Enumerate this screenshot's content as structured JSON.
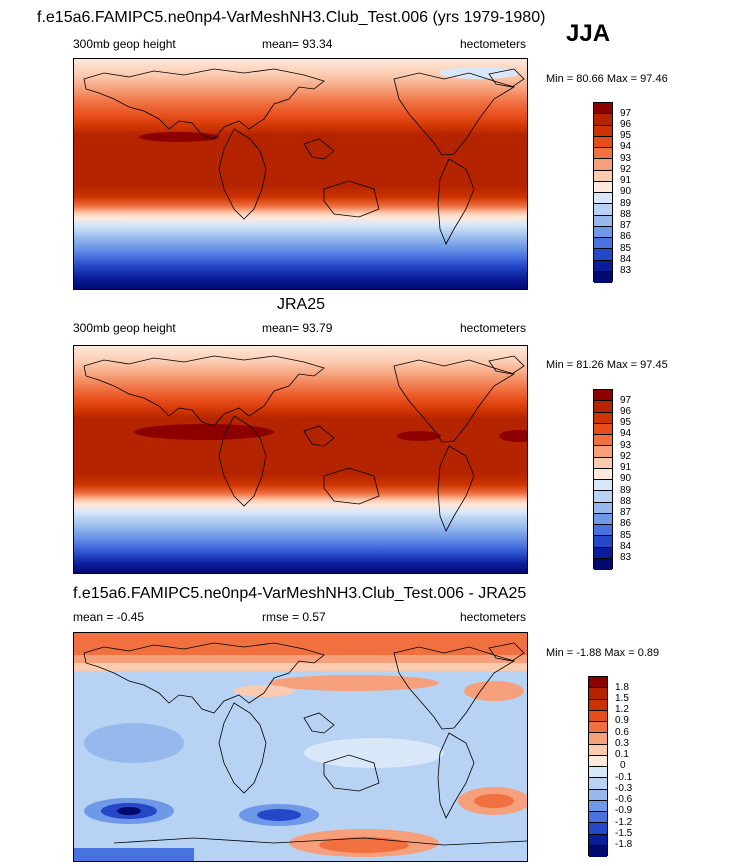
{
  "season": "JJA",
  "panels": [
    {
      "title": "f.e15a6.FAMIPC5.ne0np4-VarMeshNH3.Club_Test.006 (yrs 1979-1980)",
      "left": "300mb geop height",
      "center": "mean=  93.34",
      "right": "hectometers",
      "minmax": "Min =  80.66 Max =  97.46",
      "levels": [
        "97",
        "96",
        "95",
        "94",
        "93",
        "92",
        "91",
        "90",
        "89",
        "88",
        "87",
        "86",
        "85",
        "84",
        "83"
      ],
      "colors": [
        "#8c0000",
        "#b42400",
        "#cc3300",
        "#e64d1a",
        "#f07040",
        "#f5a07a",
        "#fbcbb0",
        "#ffe8dc",
        "#d8e8f8",
        "#b8d2f3",
        "#95b8ed",
        "#6e98e8",
        "#4872e0",
        "#2548c8",
        "#0b1e9a",
        "#000a6e"
      ]
    },
    {
      "title": "JRA25",
      "left": "300mb geop height",
      "center": "mean=  93.79",
      "right": "hectometers",
      "minmax": "Min =  81.26 Max =  97.45",
      "levels": [
        "97",
        "96",
        "95",
        "94",
        "93",
        "92",
        "91",
        "90",
        "89",
        "88",
        "87",
        "86",
        "85",
        "84",
        "83"
      ],
      "colors": [
        "#8c0000",
        "#b42400",
        "#cc3300",
        "#e64d1a",
        "#f07040",
        "#f5a07a",
        "#fbcbb0",
        "#ffe8dc",
        "#d8e8f8",
        "#b8d2f3",
        "#95b8ed",
        "#6e98e8",
        "#4872e0",
        "#2548c8",
        "#0b1e9a",
        "#000a6e"
      ]
    },
    {
      "title": "f.e15a6.FAMIPC5.ne0np4-VarMeshNH3.Club_Test.006 - JRA25",
      "left": "mean =  -0.45",
      "center": "rmse =   0.57",
      "right": "hectometers",
      "minmax": "Min =  -1.88 Max =   0.89",
      "levels": [
        "1.8",
        "1.5",
        "1.2",
        "0.9",
        "0.6",
        "0.3",
        "0.1",
        "0",
        "-0.1",
        "-0.3",
        "-0.6",
        "-0.9",
        "-1.2",
        "-1.5",
        "-1.8"
      ],
      "colors": [
        "#8c0000",
        "#b42400",
        "#cc3300",
        "#e64d1a",
        "#f07040",
        "#f5a07a",
        "#fbcbb0",
        "#ffe8dc",
        "#d8e8f8",
        "#b8d2f3",
        "#95b8ed",
        "#6e98e8",
        "#4872e0",
        "#2548c8",
        "#0b1e9a",
        "#000a6e"
      ]
    }
  ]
}
